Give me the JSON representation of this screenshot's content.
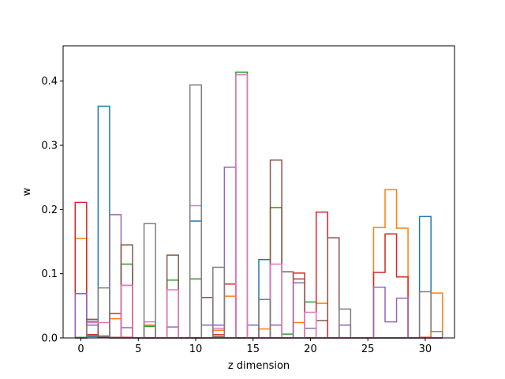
{
  "chart_data": {
    "type": "step",
    "title": "",
    "xlabel": "z dimension",
    "ylabel": "w",
    "xlim": [
      -1.55,
      32.55
    ],
    "ylim": [
      0,
      0.455
    ],
    "xticks": [
      0,
      5,
      10,
      15,
      20,
      25,
      30
    ],
    "yticks": [
      0.0,
      0.1,
      0.2,
      0.3,
      0.4
    ],
    "grid": false,
    "legend": "none",
    "bin_start": 0,
    "series": [
      {
        "color": "#1f77b4",
        "values": [
          0.069,
          0.002,
          0.361,
          0.001,
          0.0,
          0.0,
          0.0,
          0.0,
          0.0,
          0.0,
          0.182,
          0.0,
          0.0,
          0.0,
          0.0,
          0.0,
          0.122,
          0.0,
          0.0,
          0.0,
          0.0,
          0.0,
          0.0,
          0.0,
          0.0,
          0.0,
          0.0,
          0.0,
          0.0,
          0.0,
          0.189,
          0.0
        ]
      },
      {
        "color": "#ff7f0e",
        "values": [
          0.155,
          0.004,
          0.001,
          0.03,
          0.082,
          0.0,
          0.02,
          0.0,
          0.0,
          0.0,
          0.0,
          0.0,
          0.012,
          0.065,
          0.0,
          0.0,
          0.014,
          0.0,
          0.0,
          0.024,
          0.0,
          0.054,
          0.0,
          0.0,
          0.0,
          0.0,
          0.172,
          0.231,
          0.171,
          0.0,
          0.0,
          0.07
        ]
      },
      {
        "color": "#2ca02c",
        "values": [
          0.001,
          0.005,
          0.003,
          0.0,
          0.115,
          0.0,
          0.018,
          0.0,
          0.09,
          0.0,
          0.092,
          0.0,
          0.0,
          0.0,
          0.414,
          0.0,
          0.0,
          0.203,
          0.006,
          0.0,
          0.056,
          0.0,
          0.0,
          0.0,
          0.0,
          0.0,
          0.0,
          0.0,
          0.0,
          0.0,
          0.0,
          0.0
        ]
      },
      {
        "color": "#d62728",
        "values": [
          0.211,
          0.005,
          0.001,
          0.038,
          0.001,
          0.0,
          0.0,
          0.0,
          0.0,
          0.0,
          0.0,
          0.0,
          0.005,
          0.084,
          0.0,
          0.0,
          0.0,
          0.0,
          0.0,
          0.101,
          0.0,
          0.196,
          0.0,
          0.0,
          0.0,
          0.0,
          0.102,
          0.162,
          0.095,
          0.0,
          0.001,
          0.0
        ]
      },
      {
        "color": "#9467bd",
        "values": [
          0.069,
          0.02,
          0.002,
          0.192,
          0.016,
          0.0,
          0.0,
          0.0,
          0.017,
          0.0,
          0.0,
          0.02,
          0.02,
          0.266,
          0.0,
          0.02,
          0.0,
          0.02,
          0.0,
          0.086,
          0.015,
          0.0,
          0.0,
          0.02,
          0.0,
          0.0,
          0.079,
          0.025,
          0.062,
          0.0,
          0.0,
          0.0
        ]
      },
      {
        "color": "#8c564b",
        "values": [
          0.0,
          0.029,
          0.001,
          0.001,
          0.145,
          0.0,
          0.0,
          0.0,
          0.129,
          0.0,
          0.0,
          0.063,
          0.002,
          0.0,
          0.0,
          0.0,
          0.0,
          0.277,
          0.103,
          0.092,
          0.0,
          0.027,
          0.156,
          0.0,
          0.0,
          0.0,
          0.0,
          0.0,
          0.0,
          0.0,
          0.0,
          0.0
        ]
      },
      {
        "color": "#e377c2",
        "values": [
          0.0,
          0.024,
          0.024,
          0.0,
          0.082,
          0.0,
          0.025,
          0.0,
          0.075,
          0.0,
          0.206,
          0.0,
          0.015,
          0.0,
          0.41,
          0.0,
          0.0,
          0.115,
          0.0,
          0.0,
          0.04,
          0.0,
          0.0,
          0.0,
          0.0,
          0.0,
          0.0,
          0.0,
          0.0,
          0.0,
          0.0,
          0.0
        ]
      },
      {
        "color": "#7f7f7f",
        "values": [
          0.0,
          0.026,
          0.078,
          0.0,
          0.0,
          0.0,
          0.178,
          0.0,
          0.0,
          0.0,
          0.394,
          0.0,
          0.11,
          0.0,
          0.0,
          0.0,
          0.06,
          0.0,
          0.0,
          0.0,
          0.0,
          0.0,
          0.0,
          0.045,
          0.0,
          0.0,
          0.0,
          0.0,
          0.0,
          0.0,
          0.072,
          0.01
        ]
      }
    ]
  }
}
